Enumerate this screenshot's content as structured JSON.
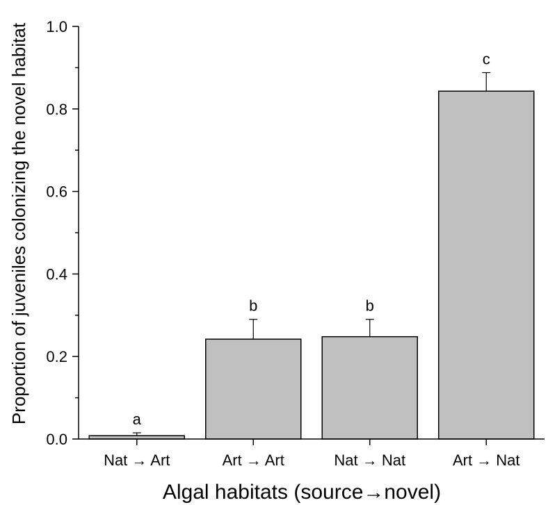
{
  "chart_data": {
    "type": "bar",
    "title": "",
    "xlabel": "Algal habitats (source→novel)",
    "ylabel": "Proportion of juveniles colonizing the novel habitat",
    "categories": [
      "Nat → Art",
      "Art → Art",
      "Nat → Nat",
      "Art → Nat"
    ],
    "values": [
      0.008,
      0.242,
      0.248,
      0.843
    ],
    "error": [
      0.007,
      0.048,
      0.042,
      0.045
    ],
    "significance_letters": [
      "a",
      "b",
      "b",
      "c"
    ],
    "ylim": [
      0,
      1.0
    ],
    "yticks": [
      "0.0",
      "0.2",
      "0.4",
      "0.6",
      "0.8",
      "1.0"
    ],
    "grid": false,
    "bar_color": "#c0c0c0",
    "edge_color": "#000000"
  }
}
